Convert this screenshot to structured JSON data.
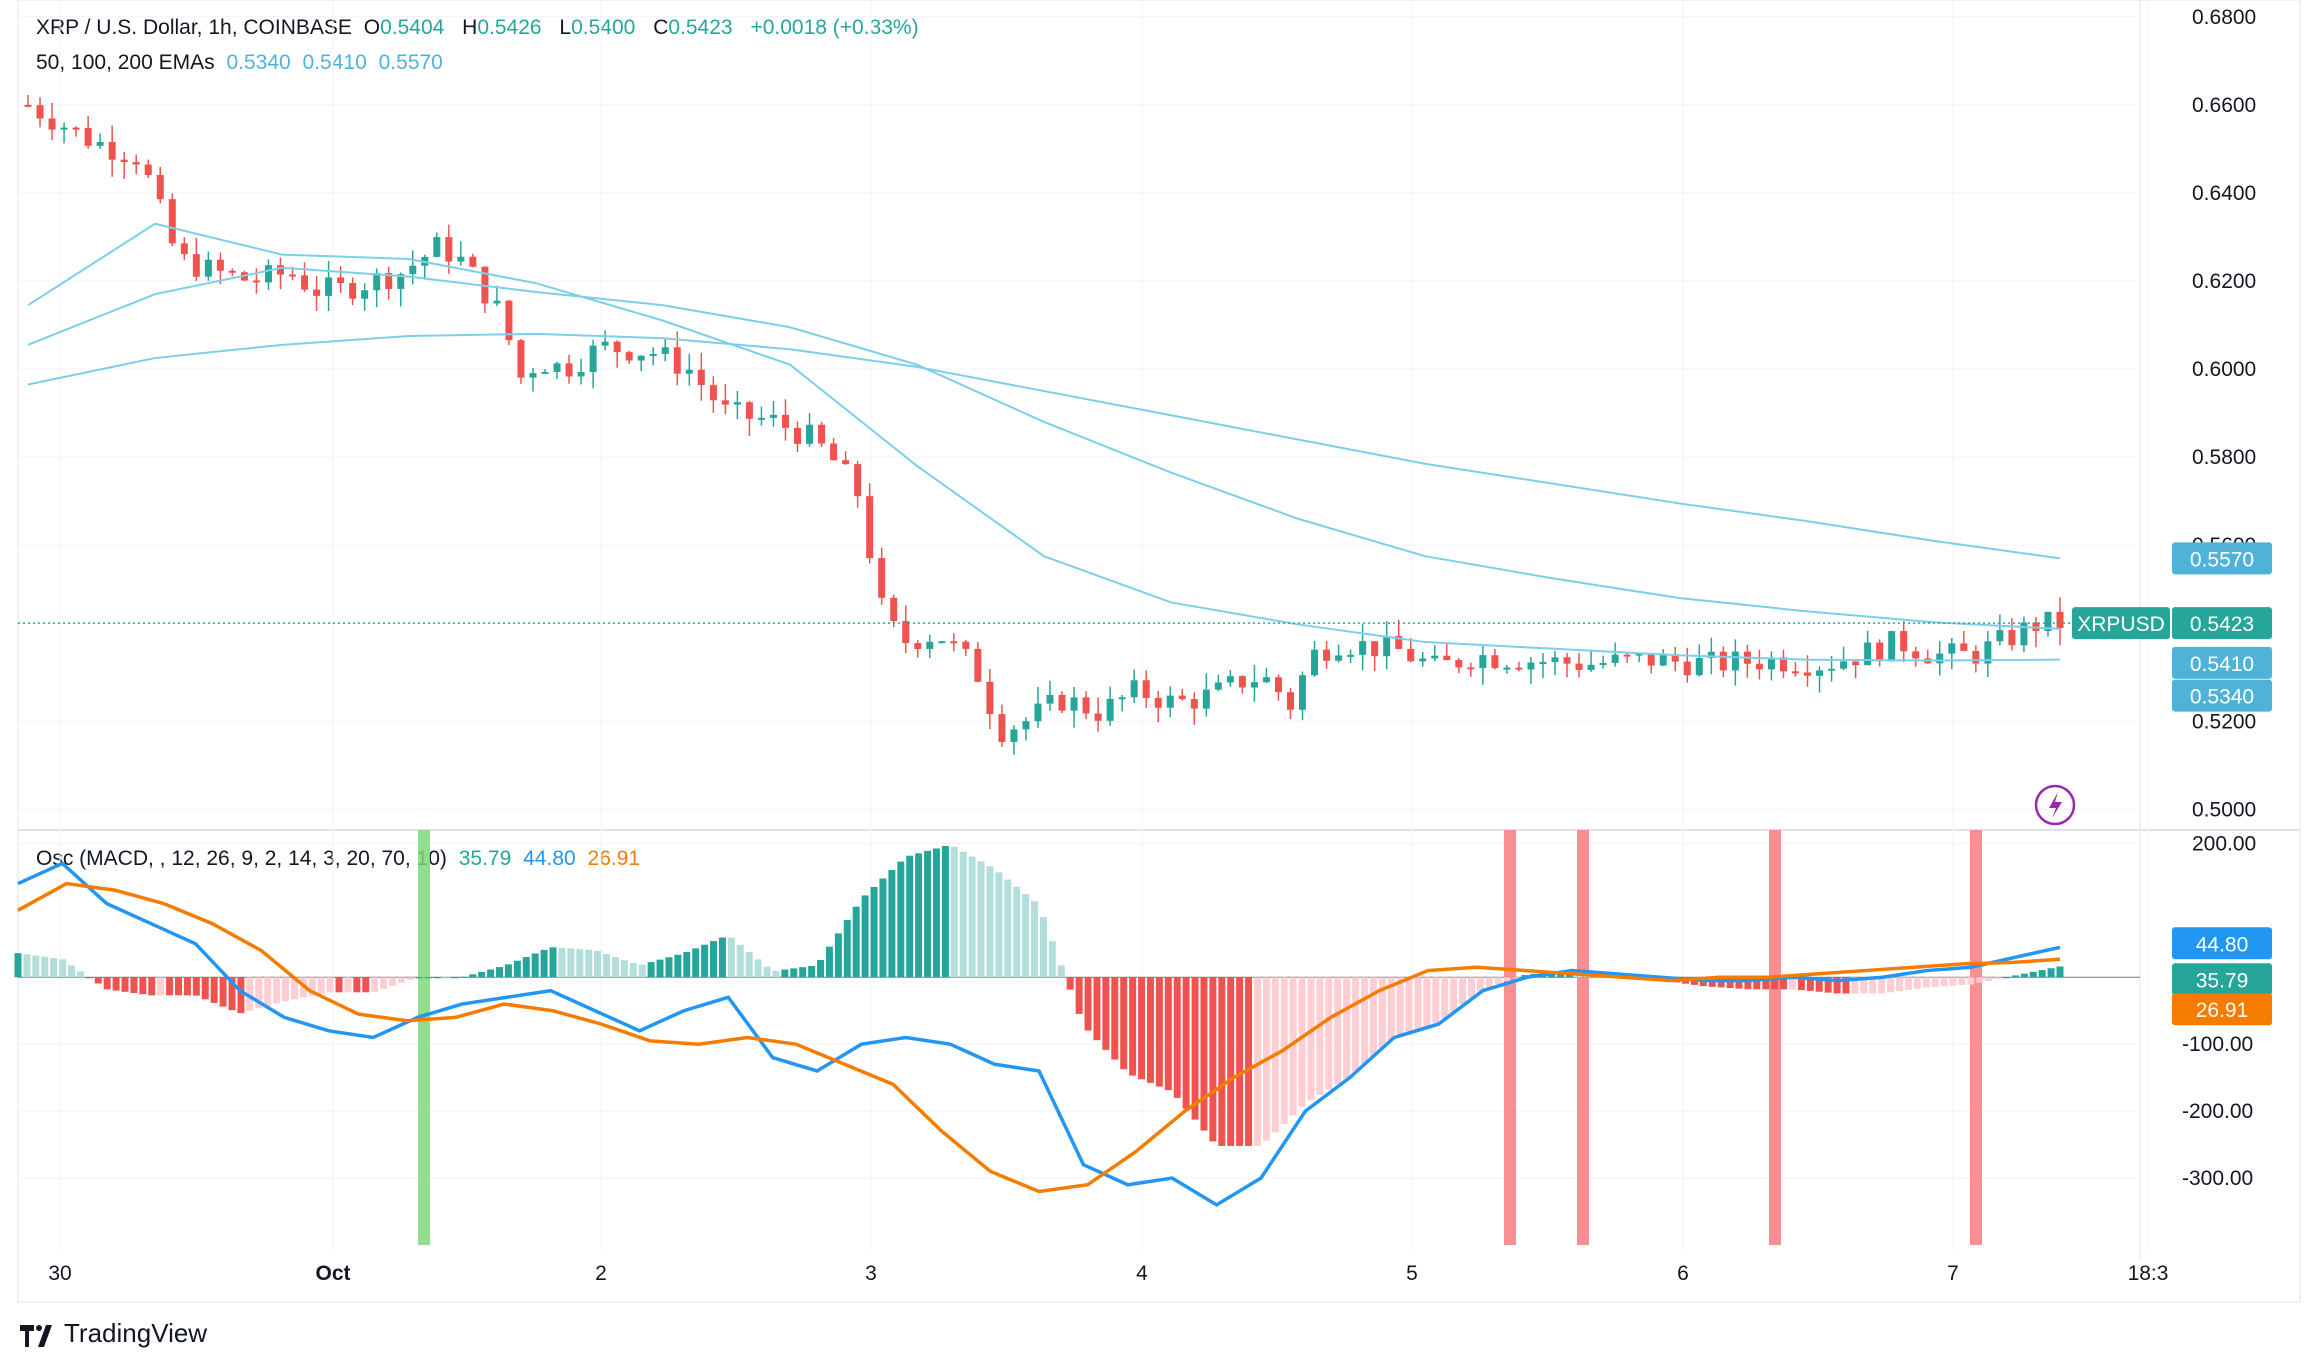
{
  "header": {
    "symbol": "XRP / U.S. Dollar, 1h, COINBASE",
    "open_label": "O",
    "open": "0.5404",
    "high_label": "H",
    "high": "0.5426",
    "low_label": "L",
    "low": "0.5400",
    "close_label": "C",
    "close": "0.5423",
    "change": "+0.0018 (+0.33%)"
  },
  "ema_legend": {
    "label": "50, 100, 200 EMAs",
    "ema50": "0.5340",
    "ema100": "0.5410",
    "ema200": "0.5570"
  },
  "osc_legend": {
    "label": "Osc (MACD, , 12, 26, 9, 2, 14, 3, 20, 70, 10)",
    "hist": "35.79",
    "macd": "44.80",
    "signal": "26.91"
  },
  "price_tags": {
    "symbol": "XRPUSD",
    "last": "0.5423",
    "ema200": "0.5570",
    "ema100": "0.5410",
    "ema50": "0.5340"
  },
  "osc_tags": {
    "macd": "44.80",
    "hist": "35.79",
    "signal": "26.91"
  },
  "brand": "TradingView",
  "colors": {
    "up": "#26a69a",
    "down": "#ef5350",
    "ema": "#7ccfe8",
    "macd": "#2196f3",
    "signal": "#f57c00",
    "hist_up_strong": "#26a69a",
    "hist_up_weak": "#b2dfdb",
    "hist_down_strong": "#ef5350",
    "hist_down_weak": "#ffcdd2",
    "marker_red": "#f77c80",
    "marker_green": "#7ed87a"
  },
  "chart_data": [
    {
      "type": "candlestick",
      "title": "XRP / U.S. Dollar, 1h, COINBASE",
      "x_ticks": [
        "30",
        "Oct",
        "2",
        "3",
        "4",
        "5",
        "6",
        "7",
        "18:3"
      ],
      "y_ticks": [
        "0.6800",
        "0.6600",
        "0.6400",
        "0.6200",
        "0.6000",
        "0.5800",
        "0.5600",
        "0.5200",
        "0.5000"
      ],
      "ylim": [
        0.4935,
        0.682
      ],
      "close_path": [
        [
          0,
          0.66
        ],
        [
          0.5,
          0.652
        ],
        [
          0.9,
          0.648
        ],
        [
          1.2,
          0.625
        ],
        [
          1.5,
          0.622
        ],
        [
          1.8,
          0.62
        ],
        [
          2.1,
          0.622
        ],
        [
          2.3,
          0.618
        ],
        [
          2.5,
          0.618
        ],
        [
          3.0,
          0.622
        ],
        [
          3.3,
          0.628
        ],
        [
          3.5,
          0.624
        ],
        [
          3.8,
          0.612
        ],
        [
          3.95,
          0.598
        ],
        [
          4.1,
          0.602
        ],
        [
          4.3,
          0.6
        ],
        [
          4.6,
          0.605
        ],
        [
          5.0,
          0.604
        ],
        [
          5.3,
          0.6
        ],
        [
          5.6,
          0.59
        ],
        [
          6.0,
          0.588
        ],
        [
          6.3,
          0.584
        ],
        [
          6.5,
          0.578
        ],
        [
          6.7,
          0.57
        ],
        [
          6.8,
          0.548
        ],
        [
          7.0,
          0.538
        ],
        [
          7.3,
          0.54
        ],
        [
          7.6,
          0.532
        ],
        [
          7.8,
          0.518
        ],
        [
          8.0,
          0.52
        ],
        [
          8.3,
          0.525
        ],
        [
          8.6,
          0.522
        ],
        [
          8.9,
          0.527
        ],
        [
          9.2,
          0.524
        ],
        [
          9.5,
          0.526
        ],
        [
          9.8,
          0.53
        ],
        [
          10.0,
          0.529
        ],
        [
          10.1,
          0.522
        ],
        [
          10.3,
          0.535
        ],
        [
          10.5,
          0.538
        ],
        [
          11.0,
          0.536
        ],
        [
          11.3,
          0.532
        ],
        [
          11.6,
          0.535
        ],
        [
          12.0,
          0.534
        ],
        [
          12.5,
          0.533
        ],
        [
          13.0,
          0.534
        ],
        [
          13.5,
          0.533
        ],
        [
          14.0,
          0.534
        ],
        [
          14.4,
          0.533
        ],
        [
          14.8,
          0.536
        ],
        [
          15.0,
          0.538
        ],
        [
          15.3,
          0.535
        ],
        [
          15.6,
          0.535
        ],
        [
          15.9,
          0.539
        ],
        [
          16.1,
          0.542
        ],
        [
          16.3,
          0.5423
        ]
      ],
      "series": [
        {
          "name": "EMA 50",
          "last": 0.534,
          "path": [
            [
              0,
              0.6145
            ],
            [
              1,
              0.633
            ],
            [
              2,
              0.626
            ],
            [
              3,
              0.625
            ],
            [
              4,
              0.6195
            ],
            [
              5,
              0.611
            ],
            [
              6,
              0.601
            ],
            [
              7,
              0.578
            ],
            [
              8,
              0.5575
            ],
            [
              9,
              0.547
            ],
            [
              10,
              0.542
            ],
            [
              11,
              0.538
            ],
            [
              12,
              0.5365
            ],
            [
              13,
              0.535
            ],
            [
              14,
              0.534
            ],
            [
              15,
              0.5338
            ],
            [
              16,
              0.534
            ]
          ]
        },
        {
          "name": "EMA 100",
          "last": 0.541,
          "path": [
            [
              0,
              0.6055
            ],
            [
              1,
              0.617
            ],
            [
              2,
              0.623
            ],
            [
              3,
              0.621
            ],
            [
              4,
              0.6175
            ],
            [
              5,
              0.6145
            ],
            [
              6,
              0.6095
            ],
            [
              7,
              0.601
            ],
            [
              8,
              0.588
            ],
            [
              9,
              0.5765
            ],
            [
              10,
              0.566
            ],
            [
              11,
              0.5575
            ],
            [
              12,
              0.5525
            ],
            [
              13,
              0.548
            ],
            [
              14,
              0.545
            ],
            [
              15,
              0.5425
            ],
            [
              16,
              0.541
            ]
          ]
        },
        {
          "name": "EMA 200",
          "last": 0.557,
          "path": [
            [
              0,
              0.5965
            ],
            [
              1,
              0.6025
            ],
            [
              2,
              0.6055
            ],
            [
              3,
              0.6075
            ],
            [
              4,
              0.608
            ],
            [
              5,
              0.607
            ],
            [
              6,
              0.6045
            ],
            [
              7,
              0.6005
            ],
            [
              8,
              0.595
            ],
            [
              9,
              0.5895
            ],
            [
              10,
              0.584
            ],
            [
              11,
              0.5785
            ],
            [
              12,
              0.574
            ],
            [
              13,
              0.5695
            ],
            [
              14,
              0.5655
            ],
            [
              15,
              0.561
            ],
            [
              16,
              0.557
            ]
          ]
        }
      ]
    },
    {
      "type": "bar",
      "title": "Osc (MACD, , 12, 26, 9, 2, 14, 3, 20, 70, 10)",
      "y_ticks": [
        "200.00",
        "-100.00",
        "-200.00",
        "-300.00"
      ],
      "ylim": [
        -400,
        220
      ],
      "series": [
        {
          "name": "MACD",
          "last": 44.8,
          "path": [
            [
              0,
              140
            ],
            [
              0.5,
              170
            ],
            [
              1,
              110
            ],
            [
              1.5,
              80
            ],
            [
              2,
              50
            ],
            [
              2.5,
              -20
            ],
            [
              3,
              -60
            ],
            [
              3.5,
              -80
            ],
            [
              4,
              -90
            ],
            [
              4.5,
              -60
            ],
            [
              5,
              -40
            ],
            [
              5.5,
              -30
            ],
            [
              6,
              -20
            ],
            [
              6.5,
              -50
            ],
            [
              7,
              -80
            ],
            [
              7.5,
              -50
            ],
            [
              8,
              -30
            ],
            [
              8.5,
              -120
            ],
            [
              9,
              -140
            ],
            [
              9.5,
              -100
            ],
            [
              10,
              -90
            ],
            [
              10.5,
              -100
            ],
            [
              11,
              -130
            ],
            [
              11.5,
              -140
            ],
            [
              12,
              -280
            ],
            [
              12.5,
              -310
            ],
            [
              13,
              -300
            ],
            [
              13.5,
              -340
            ],
            [
              14,
              -300
            ],
            [
              14.5,
              -200
            ],
            [
              15,
              -150
            ],
            [
              15.5,
              -90
            ],
            [
              16,
              -70
            ],
            [
              16.5,
              -20
            ],
            [
              17,
              0
            ],
            [
              17.5,
              10
            ],
            [
              18,
              5
            ],
            [
              18.5,
              0
            ],
            [
              19,
              -5
            ],
            [
              19.5,
              -5
            ],
            [
              20,
              0
            ],
            [
              20.5,
              -5
            ],
            [
              21,
              0
            ],
            [
              21.5,
              10
            ],
            [
              22,
              15
            ],
            [
              22.5,
              30
            ],
            [
              23,
              44.8
            ]
          ]
        },
        {
          "name": "Signal",
          "last": 26.91,
          "path": [
            [
              0,
              100
            ],
            [
              0.5,
              140
            ],
            [
              1,
              130
            ],
            [
              1.5,
              110
            ],
            [
              2,
              80
            ],
            [
              2.5,
              40
            ],
            [
              3,
              -20
            ],
            [
              3.5,
              -55
            ],
            [
              4,
              -65
            ],
            [
              4.5,
              -60
            ],
            [
              5,
              -40
            ],
            [
              5.5,
              -50
            ],
            [
              6,
              -70
            ],
            [
              6.5,
              -95
            ],
            [
              7,
              -100
            ],
            [
              7.5,
              -90
            ],
            [
              8,
              -100
            ],
            [
              8.5,
              -130
            ],
            [
              9,
              -160
            ],
            [
              9.5,
              -230
            ],
            [
              10,
              -290
            ],
            [
              10.5,
              -320
            ],
            [
              11,
              -310
            ],
            [
              11.5,
              -260
            ],
            [
              12,
              -200
            ],
            [
              12.5,
              -150
            ],
            [
              13,
              -110
            ],
            [
              13.5,
              -60
            ],
            [
              14,
              -20
            ],
            [
              14.5,
              10
            ],
            [
              15,
              15
            ],
            [
              15.5,
              10
            ],
            [
              16,
              5
            ],
            [
              16.5,
              0
            ],
            [
              17,
              -5
            ],
            [
              17.5,
              0
            ],
            [
              18,
              0
            ],
            [
              18.5,
              5
            ],
            [
              19,
              10
            ],
            [
              19.5,
              15
            ],
            [
              20,
              20
            ],
            [
              20.5,
              22
            ],
            [
              21,
              26.91
            ]
          ]
        },
        {
          "name": "Histogram",
          "last": 35.79
        }
      ]
    }
  ]
}
